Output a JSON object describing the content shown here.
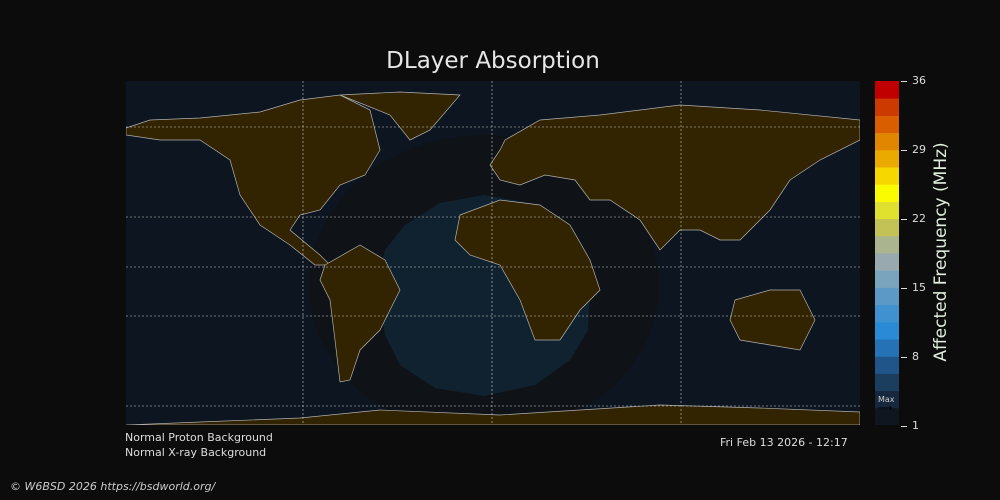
{
  "title": "DLayer Absorption",
  "colorbar": {
    "label": "Affected Frequency (MHz)",
    "ticks": [
      "36",
      "29",
      "22",
      "15",
      "8",
      "1"
    ],
    "min": 1,
    "max": 36,
    "max_marker": "Max",
    "colors": [
      "#0f1620",
      "#15283e",
      "#1b3d5e",
      "#1f5588",
      "#2573b6",
      "#2a8ad6",
      "#3f92cf",
      "#5c99c6",
      "#7aa3bd",
      "#98aab0",
      "#aab48e",
      "#c2c257",
      "#e0e02e",
      "#fbfb00",
      "#f6d800",
      "#eaaa00",
      "#e08600",
      "#d85e00",
      "#cc3a00",
      "#c00000"
    ]
  },
  "map": {
    "land_color": "#322400",
    "ocean_color": "#0d1520",
    "absorption_outer": "#0f1318",
    "absorption_inner": "#10222f"
  },
  "status": {
    "proton": "Normal Proton Background",
    "xray": "Normal X-ray Background",
    "timestamp": "Fri Feb 13 2026 - 12:17"
  },
  "footer": "© W6BSD 2026 https://bsdworld.org/"
}
